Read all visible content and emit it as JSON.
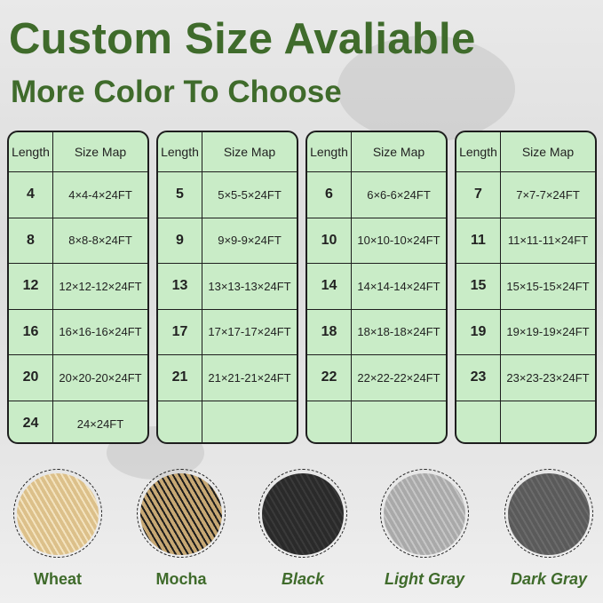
{
  "header": {
    "title": "Custom Size Avaliable",
    "subtitle": "More Color To Choose"
  },
  "table": {
    "col_length": "Length",
    "col_size": "Size Map",
    "panels": [
      {
        "rows": [
          [
            "4",
            "4×4-4×24FT"
          ],
          [
            "8",
            "8×8-8×24FT"
          ],
          [
            "12",
            "12×12-12×24FT"
          ],
          [
            "16",
            "16×16-16×24FT"
          ],
          [
            "20",
            "20×20-20×24FT"
          ],
          [
            "24",
            "24×24FT"
          ]
        ]
      },
      {
        "rows": [
          [
            "5",
            "5×5-5×24FT"
          ],
          [
            "9",
            "9×9-9×24FT"
          ],
          [
            "13",
            "13×13-13×24FT"
          ],
          [
            "17",
            "17×17-17×24FT"
          ],
          [
            "21",
            "21×21-21×24FT"
          ],
          [
            "",
            ""
          ]
        ]
      },
      {
        "rows": [
          [
            "6",
            "6×6-6×24FT"
          ],
          [
            "10",
            "10×10-10×24FT"
          ],
          [
            "14",
            "14×14-14×24FT"
          ],
          [
            "18",
            "18×18-18×24FT"
          ],
          [
            "22",
            "22×22-22×24FT"
          ],
          [
            "",
            ""
          ]
        ]
      },
      {
        "rows": [
          [
            "7",
            "7×7-7×24FT"
          ],
          [
            "11",
            "11×11-11×24FT"
          ],
          [
            "15",
            "15×15-15×24FT"
          ],
          [
            "19",
            "19×19-19×24FT"
          ],
          [
            "23",
            "23×23-23×24FT"
          ],
          [
            "",
            ""
          ]
        ]
      }
    ]
  },
  "colors": [
    {
      "label": "Wheat",
      "swatch": "#dcc08a",
      "accent": "#f3e3bf",
      "italic": false
    },
    {
      "label": "Mocha",
      "swatch": "#c7a874",
      "accent": "#1c1c1c",
      "italic": false
    },
    {
      "label": "Black",
      "swatch": "#2a2a2a",
      "accent": "#3a3a3a",
      "italic": true
    },
    {
      "label": "Light Gray",
      "swatch": "#a9a9a9",
      "accent": "#c6c6c6",
      "italic": true
    },
    {
      "label": "Dark Gray",
      "swatch": "#5a5a5a",
      "accent": "#6b6b6b",
      "italic": true
    }
  ],
  "theme": {
    "title_color": "#3f6b2b",
    "table_fill": "#c9ecc7"
  }
}
